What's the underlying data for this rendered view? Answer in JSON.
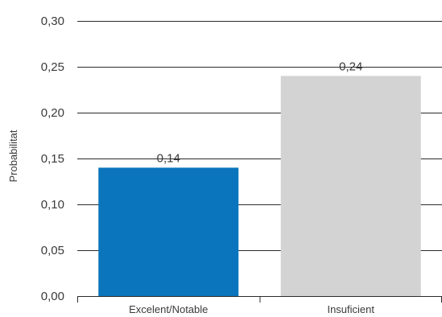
{
  "chart_data": {
    "type": "bar",
    "categories": [
      "Excelent/Notable",
      "Insuficient"
    ],
    "values": [
      0.14,
      0.24
    ],
    "data_labels": [
      "0,14",
      "0,24"
    ],
    "ylabel": "Probabilitat",
    "xlabel": "",
    "ylim": [
      0,
      0.3
    ],
    "y_ticks": [
      0.0,
      0.05,
      0.1,
      0.15,
      0.2,
      0.25,
      0.3
    ],
    "y_tick_labels": [
      "0,00",
      "0,05",
      "0,10",
      "0,15",
      "0,20",
      "0,25",
      "0,30"
    ],
    "grid": true,
    "bar_colors": [
      "#0a74bc",
      "#d3d3d4"
    ]
  }
}
